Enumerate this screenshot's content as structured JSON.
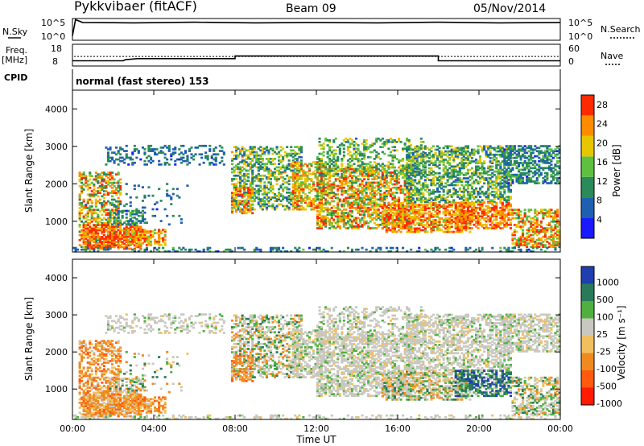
{
  "header": {
    "station": "Pykkvibaer (fitACF)",
    "beam": "Beam 09",
    "date": "05/Nov/2014"
  },
  "panels": {
    "nsky": {
      "label": "N.Sky",
      "ytick_top": "10^5",
      "ytick_bottom": "10^0",
      "right_label": "N.Search",
      "rtick_top": "10^5",
      "rtick_bottom": "10^0"
    },
    "freq": {
      "label_1": "Freq.",
      "label_2": "[MHz]",
      "ytick_top": "18",
      "ytick_bottom": "8",
      "right_label": "Nave",
      "rtick_top": "60",
      "rtick_bottom": "0"
    },
    "cpid": {
      "label": "CPID",
      "text": "normal (fast stereo) 153"
    }
  },
  "chart_data": [
    {
      "type": "heatmap",
      "title": "",
      "xlabel": "Time UT",
      "ylabel": "Slant Range [km]",
      "xticks": [
        "00:00",
        "04:00",
        "08:00",
        "12:00",
        "16:00",
        "20:00",
        "00:00"
      ],
      "yticks": [
        "1000",
        "2000",
        "3000",
        "4000"
      ],
      "ylim": [
        180,
        4500
      ],
      "colorbar": {
        "label": "Power [dB]",
        "ticks": [
          "4",
          "8",
          "12",
          "16",
          "20",
          "24",
          "28"
        ],
        "range": [
          0,
          30
        ]
      },
      "colors": [
        "#1a1aff",
        "#1f5fb0",
        "#2a8a5a",
        "#5fc040",
        "#e6c600",
        "#ff8c00",
        "#ff2a00"
      ]
    },
    {
      "type": "heatmap",
      "title": "",
      "xlabel": "Time UT",
      "ylabel": "Slant Range [km]",
      "xticks": [
        "00:00",
        "04:00",
        "08:00",
        "12:00",
        "16:00",
        "20:00",
        "00:00"
      ],
      "yticks": [
        "1000",
        "2000",
        "3000",
        "4000"
      ],
      "ylim": [
        180,
        4500
      ],
      "colorbar": {
        "label": "Velocity [m s⁻¹]",
        "ticks": [
          "1000",
          "500",
          "100",
          "25",
          "-25",
          "-100",
          "-500",
          "-1000"
        ]
      },
      "colors": [
        "#1f3fb0",
        "#2a7a5a",
        "#4fb040",
        "#c8c8c0",
        "#f0c060",
        "#f08a20",
        "#ff5a10",
        "#ff1a00"
      ]
    }
  ],
  "scatter_regions": [
    {
      "t0": 0.3,
      "t1": 2.4,
      "r0": 300,
      "r1": 2300,
      "p": 0.5,
      "power": [
        8,
        30
      ],
      "vel": "neg"
    },
    {
      "t0": 0.5,
      "t1": 3.4,
      "r0": 250,
      "r1": 900,
      "p": 0.7,
      "power": [
        20,
        30
      ],
      "vel": "neg"
    },
    {
      "t0": 2.6,
      "t1": 4.5,
      "r0": 350,
      "r1": 800,
      "p": 0.6,
      "power": [
        16,
        30
      ],
      "vel": "neg"
    },
    {
      "t0": 1.8,
      "t1": 3.6,
      "r0": 900,
      "r1": 1300,
      "p": 0.5,
      "power": [
        6,
        16
      ],
      "vel": "mix"
    },
    {
      "t0": 1.6,
      "t1": 7.4,
      "r0": 2500,
      "r1": 3000,
      "p": 0.25,
      "power": [
        4,
        12
      ],
      "vel": "zero"
    },
    {
      "t0": 2.2,
      "t1": 5.6,
      "r0": 900,
      "r1": 2000,
      "p": 0.06,
      "power": [
        4,
        12
      ],
      "vel": "mix"
    },
    {
      "t0": 7.8,
      "t1": 11.2,
      "r0": 1300,
      "r1": 3000,
      "p": 0.45,
      "power": [
        6,
        22
      ],
      "vel": "mix"
    },
    {
      "t0": 7.8,
      "t1": 8.8,
      "r0": 1200,
      "r1": 1900,
      "p": 0.5,
      "power": [
        16,
        30
      ],
      "vel": "neg"
    },
    {
      "t0": 10.8,
      "t1": 12.2,
      "r0": 1300,
      "r1": 2600,
      "p": 0.55,
      "power": [
        14,
        28
      ],
      "vel": "zero"
    },
    {
      "t0": 12.0,
      "t1": 16.6,
      "r0": 800,
      "r1": 2500,
      "p": 0.55,
      "power": [
        10,
        30
      ],
      "vel": "zero"
    },
    {
      "t0": 12.0,
      "t1": 17.4,
      "r0": 2200,
      "r1": 3200,
      "p": 0.3,
      "power": [
        8,
        20
      ],
      "vel": "zero"
    },
    {
      "t0": 15.2,
      "t1": 19.6,
      "r0": 700,
      "r1": 1500,
      "p": 0.6,
      "power": [
        16,
        30
      ],
      "vel": "mix"
    },
    {
      "t0": 16.4,
      "t1": 21.6,
      "r0": 1500,
      "r1": 3000,
      "p": 0.5,
      "power": [
        6,
        20
      ],
      "vel": "zero"
    },
    {
      "t0": 18.8,
      "t1": 21.6,
      "r0": 800,
      "r1": 1500,
      "p": 0.6,
      "power": [
        18,
        30
      ],
      "vel": "pos"
    },
    {
      "t0": 21.2,
      "t1": 24.0,
      "r0": 2000,
      "r1": 3000,
      "p": 0.55,
      "power": [
        4,
        16
      ],
      "vel": "zero"
    },
    {
      "t0": 21.6,
      "t1": 24.0,
      "r0": 300,
      "r1": 1300,
      "p": 0.55,
      "power": [
        12,
        30
      ],
      "vel": "mix"
    },
    {
      "t0": 0.0,
      "t1": 24.0,
      "r0": 180,
      "r1": 300,
      "p": 0.25,
      "power": [
        4,
        14
      ],
      "vel": "zero"
    }
  ],
  "series": {
    "nsky": [
      [
        0.0,
        0.2
      ],
      [
        0.15,
        0.95
      ],
      [
        0.5,
        0.82
      ],
      [
        3,
        0.8
      ],
      [
        6,
        0.83
      ],
      [
        9,
        0.8
      ],
      [
        12,
        0.82
      ],
      [
        15,
        0.8
      ],
      [
        18,
        0.83
      ],
      [
        21,
        0.8
      ],
      [
        24,
        0.82
      ]
    ],
    "freq_mhz": [
      [
        0,
        10.4
      ],
      [
        2.5,
        10.4
      ],
      [
        2.6,
        10.9
      ],
      [
        3.2,
        11.4
      ],
      [
        8.0,
        11.4
      ],
      [
        8.0,
        12.6
      ],
      [
        18.0,
        12.6
      ],
      [
        18.0,
        10.4
      ],
      [
        24,
        10.4
      ]
    ],
    "nave_dotted_level": 12.4
  }
}
